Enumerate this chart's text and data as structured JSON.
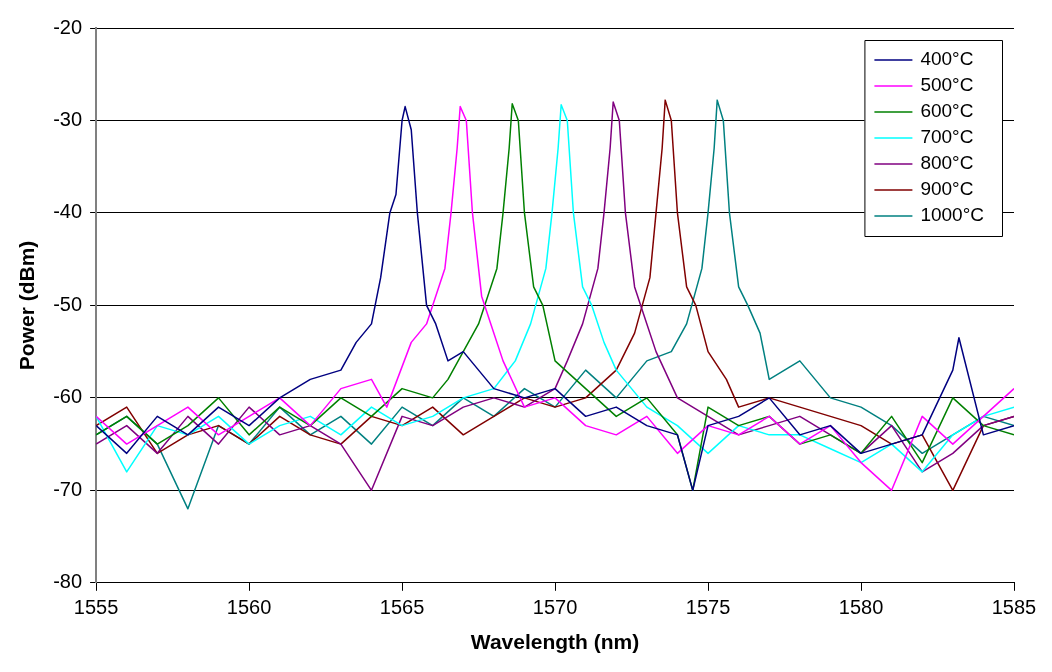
{
  "chart_data": {
    "type": "line",
    "xlabel": "Wavelength (nm)",
    "ylabel": "Power (dBm)",
    "xlim": [
      1555,
      1585
    ],
    "xticks": [
      1555,
      1560,
      1565,
      1570,
      1575,
      1580,
      1585
    ],
    "ylim": [
      -80,
      -20
    ],
    "yticks": [
      -80,
      -70,
      -60,
      -50,
      -40,
      -30,
      -20
    ],
    "grid": "y",
    "legend": "top right",
    "marker": "none",
    "line_style": "solid",
    "series": [
      {
        "name": "400°C",
        "color": "#000080",
        "x": [
          1555,
          1556,
          1557,
          1558,
          1559,
          1560,
          1561,
          1562,
          1563,
          1563.5,
          1564,
          1564.3,
          1564.6,
          1564.8,
          1565,
          1565.1,
          1565.3,
          1565.5,
          1565.8,
          1566.1,
          1566.5,
          1567,
          1568,
          1569,
          1570,
          1571,
          1572,
          1573,
          1574,
          1574.5,
          1575,
          1576,
          1577,
          1578,
          1579,
          1580,
          1581,
          1582,
          1583,
          1583.2,
          1584,
          1585
        ],
        "values": [
          -63,
          -66,
          -62,
          -64,
          -61,
          -63,
          -60,
          -58,
          -57,
          -54,
          -52,
          -47,
          -40,
          -38,
          -30,
          -28.5,
          -31,
          -40,
          -50,
          -52,
          -56,
          -55,
          -59,
          -60,
          -59,
          -62,
          -61,
          -63,
          -64,
          -70,
          -63,
          -62,
          -60,
          -64,
          -63,
          -66,
          -65,
          -64,
          -57,
          -53.5,
          -64,
          -63
        ]
      },
      {
        "name": "500°C",
        "color": "#ff00ff",
        "x": [
          1555,
          1556,
          1557,
          1558,
          1559,
          1560,
          1561,
          1562,
          1563,
          1564,
          1564.5,
          1565.3,
          1565.8,
          1566.4,
          1566.6,
          1566.8,
          1566.9,
          1567.1,
          1567.3,
          1567.6,
          1567.9,
          1568.3,
          1569,
          1570,
          1571,
          1572,
          1573,
          1574,
          1575,
          1576,
          1577,
          1578,
          1579,
          1580,
          1581,
          1582,
          1583,
          1584,
          1585
        ],
        "values": [
          -62,
          -65,
          -63,
          -61,
          -64,
          -62,
          -60,
          -63,
          -59,
          -58,
          -61,
          -54,
          -52,
          -46,
          -40,
          -33,
          -28.5,
          -30,
          -40,
          -49,
          -52,
          -56,
          -61,
          -60,
          -63,
          -64,
          -62,
          -66,
          -63,
          -64,
          -62,
          -65,
          -63,
          -67,
          -70,
          -62,
          -65,
          -62,
          -59
        ]
      },
      {
        "name": "600°C",
        "color": "#008000",
        "x": [
          1555,
          1556,
          1557,
          1558,
          1559,
          1560,
          1561,
          1562,
          1563,
          1564,
          1565,
          1566,
          1566.5,
          1567,
          1567.5,
          1568.1,
          1568.3,
          1568.5,
          1568.6,
          1568.8,
          1569,
          1569.3,
          1569.6,
          1570,
          1571,
          1572,
          1573,
          1574,
          1574.5,
          1575,
          1576,
          1577,
          1578,
          1579,
          1580,
          1581,
          1582,
          1583,
          1584,
          1585
        ],
        "values": [
          -64,
          -62,
          -65,
          -63,
          -60,
          -64,
          -61,
          -63,
          -60,
          -62,
          -59,
          -60,
          -58,
          -55,
          -52,
          -46,
          -40,
          -33,
          -28.2,
          -30,
          -40,
          -48,
          -50,
          -56,
          -59,
          -62,
          -60,
          -64,
          -70,
          -61,
          -63,
          -62,
          -65,
          -64,
          -66,
          -62,
          -67,
          -60,
          -63,
          -64
        ]
      },
      {
        "name": "700°C",
        "color": "#00ffff",
        "x": [
          1555,
          1556,
          1557,
          1558,
          1559,
          1560,
          1561,
          1562,
          1563,
          1564,
          1565,
          1566,
          1567,
          1568,
          1568.7,
          1569.2,
          1569.7,
          1569.9,
          1570.1,
          1570.2,
          1570.4,
          1570.6,
          1570.9,
          1571.2,
          1571.6,
          1572,
          1573,
          1574,
          1575,
          1576,
          1577,
          1578,
          1579,
          1580,
          1581,
          1582,
          1583,
          1584,
          1585
        ],
        "values": [
          -62,
          -68,
          -63,
          -64,
          -62,
          -65,
          -63,
          -62,
          -64,
          -61,
          -63,
          -62,
          -60,
          -59,
          -56,
          -52,
          -46,
          -40,
          -33,
          -28.3,
          -30,
          -40,
          -48,
          -50,
          -54,
          -57,
          -61,
          -63,
          -66,
          -63,
          -64,
          -64,
          -65.5,
          -67,
          -65,
          -68,
          -64,
          -62,
          -61
        ]
      },
      {
        "name": "800°C",
        "color": "#800080",
        "x": [
          1555,
          1556,
          1557,
          1558,
          1559,
          1560,
          1561,
          1562,
          1563,
          1564,
          1565,
          1566,
          1567,
          1568,
          1569,
          1570,
          1570.4,
          1570.9,
          1571.4,
          1571.6,
          1571.8,
          1571.9,
          1572.1,
          1572.3,
          1572.6,
          1572.9,
          1573.3,
          1574,
          1575,
          1576,
          1577,
          1578,
          1579,
          1580,
          1581,
          1582,
          1583,
          1584,
          1585
        ],
        "values": [
          -65,
          -63,
          -66,
          -62,
          -65,
          -61,
          -64,
          -63,
          -65,
          -70,
          -62,
          -63,
          -61,
          -60,
          -61,
          -59,
          -56,
          -52,
          -46,
          -40,
          -33,
          -28,
          -30,
          -40,
          -48,
          -51,
          -55,
          -60,
          -62,
          -64,
          -63,
          -62,
          -64,
          -66,
          -63,
          -68,
          -66,
          -63,
          -62
        ]
      },
      {
        "name": "900°C",
        "color": "#800000",
        "x": [
          1555,
          1556,
          1557,
          1558,
          1559,
          1560,
          1561,
          1562,
          1563,
          1564,
          1565,
          1566,
          1567,
          1568,
          1569,
          1570,
          1571,
          1572,
          1572.6,
          1573.1,
          1573.3,
          1573.5,
          1573.6,
          1573.8,
          1574,
          1574.3,
          1574.6,
          1575,
          1575.6,
          1576,
          1577,
          1578,
          1579,
          1580,
          1581,
          1582,
          1583,
          1584,
          1585
        ],
        "values": [
          -63,
          -61,
          -66,
          -64,
          -63,
          -65,
          -62,
          -64,
          -65,
          -62,
          -63,
          -61,
          -64,
          -62,
          -60,
          -61,
          -60,
          -57,
          -53,
          -47,
          -40,
          -33,
          -27.8,
          -30,
          -40,
          -48,
          -50,
          -55,
          -58,
          -61,
          -60,
          -61,
          -62,
          -63,
          -65,
          -64,
          -70,
          -63,
          -62
        ]
      },
      {
        "name": "1000°C",
        "color": "#008080",
        "x": [
          1555,
          1556,
          1557,
          1558,
          1559,
          1560,
          1561,
          1562,
          1563,
          1564,
          1565,
          1566,
          1567,
          1568,
          1569,
          1570,
          1571,
          1572,
          1573,
          1573.8,
          1574.3,
          1574.8,
          1575,
          1575.2,
          1575.3,
          1575.5,
          1575.7,
          1576,
          1576.3,
          1576.7,
          1577,
          1578,
          1579,
          1580,
          1581,
          1582,
          1583,
          1584,
          1585
        ],
        "values": [
          -64,
          -62,
          -65,
          -72,
          -63,
          -65,
          -61,
          -64,
          -62,
          -65,
          -61,
          -63,
          -60,
          -62,
          -59,
          -61,
          -57,
          -60,
          -56,
          -55,
          -52,
          -46,
          -40,
          -33,
          -27.8,
          -30,
          -40,
          -48,
          -50,
          -53,
          -58,
          -56,
          -60,
          -61,
          -63,
          -66,
          -64,
          -62,
          -63
        ]
      }
    ]
  }
}
